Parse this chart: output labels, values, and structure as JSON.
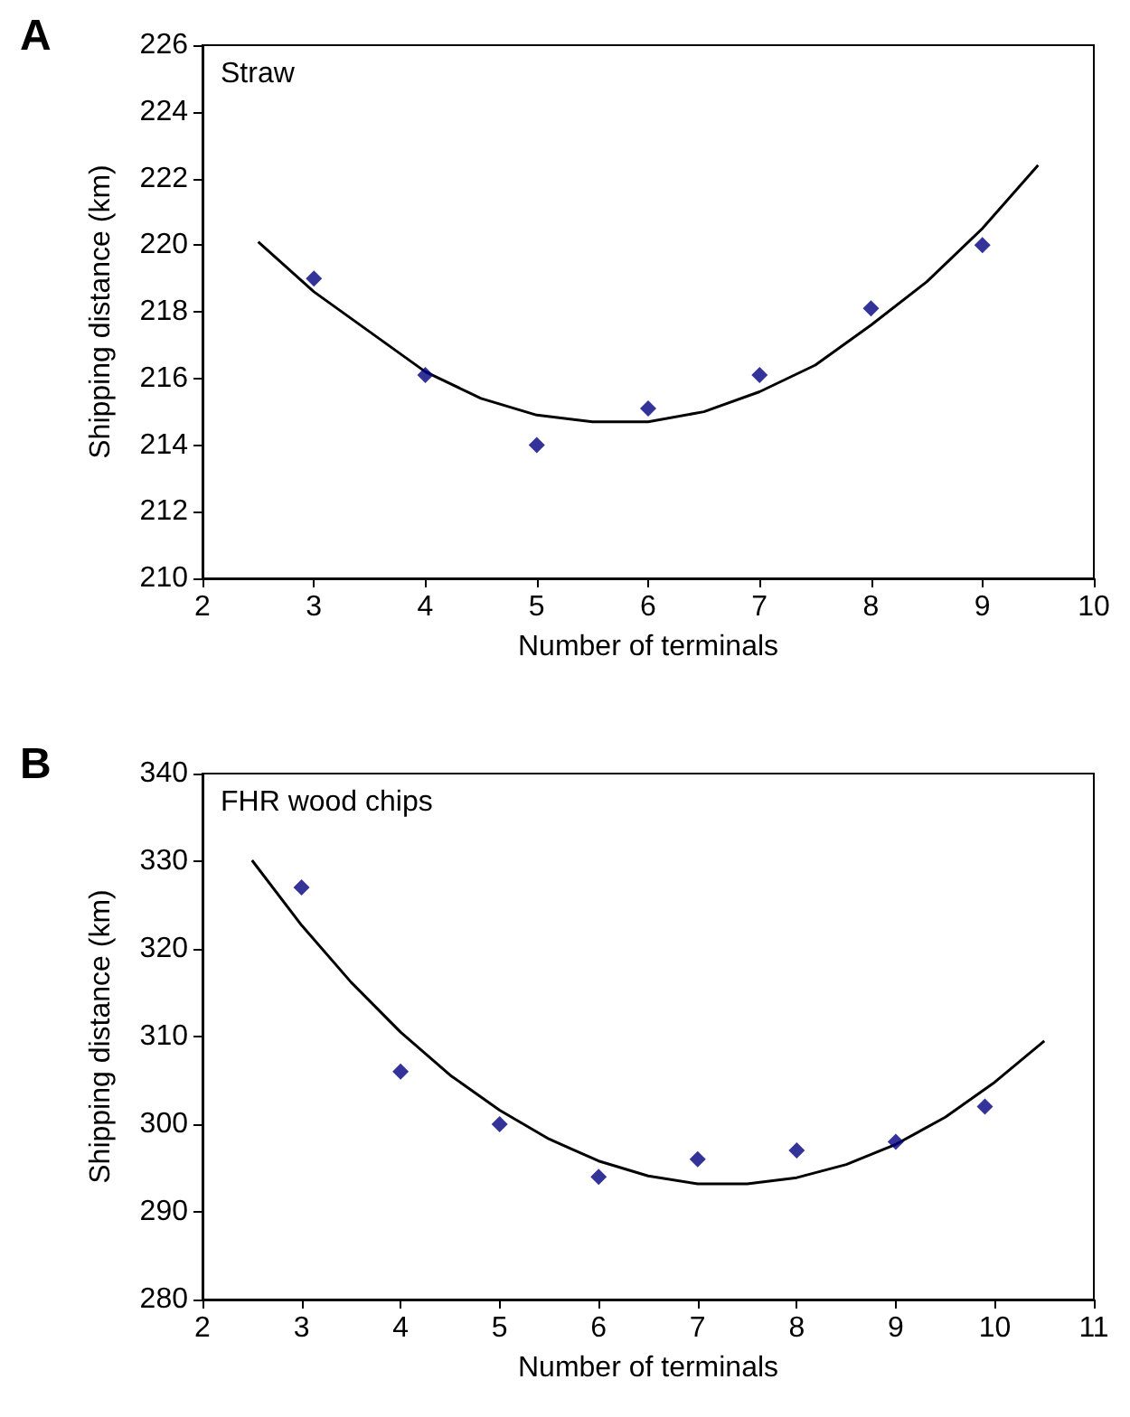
{
  "chart_data": [
    {
      "type": "scatter",
      "title": "A",
      "xlabel": "Number of terminals",
      "ylabel": "Shipping distance (km)",
      "annotations": [
        "Straw"
      ],
      "grid": false,
      "xlim": [
        2,
        10
      ],
      "xticks": [
        2,
        3,
        4,
        5,
        6,
        7,
        8,
        9,
        10
      ],
      "ylim": [
        210,
        226
      ],
      "yticks": [
        210,
        212,
        214,
        216,
        218,
        220,
        222,
        224,
        226
      ],
      "series": [
        {
          "marker": "diamond",
          "color": "#000080",
          "x": [
            3,
            4,
            5,
            6,
            7,
            8,
            9
          ],
          "values": [
            219,
            216.1,
            214,
            215.1,
            216.1,
            218.1,
            220
          ]
        },
        {
          "type": "line",
          "marker": "none",
          "color": "#000000",
          "x": [
            2.5,
            3,
            3.5,
            4,
            4.5,
            5,
            5.5,
            6,
            6.5,
            7,
            7.5,
            8,
            8.5,
            9,
            9.5
          ],
          "values": [
            220.1,
            218.6,
            217.4,
            216.2,
            215.4,
            214.9,
            214.7,
            214.7,
            215.0,
            215.6,
            216.4,
            217.6,
            218.9,
            220.5,
            222.4
          ]
        }
      ]
    },
    {
      "type": "scatter",
      "title": "B",
      "xlabel": "Number of terminals",
      "ylabel": "Shipping distance (km)",
      "annotations": [
        "FHR wood chips"
      ],
      "grid": false,
      "xlim": [
        2,
        11
      ],
      "xticks": [
        2,
        3,
        4,
        5,
        6,
        7,
        8,
        9,
        10,
        11
      ],
      "ylim": [
        280,
        340
      ],
      "yticks": [
        280,
        290,
        300,
        310,
        320,
        330,
        340
      ],
      "series": [
        {
          "marker": "diamond",
          "color": "#000080",
          "x": [
            3,
            4,
            5,
            6,
            7,
            8,
            9,
            9.9
          ],
          "values": [
            327,
            306,
            300,
            294,
            296,
            297,
            298,
            302
          ]
        },
        {
          "type": "line",
          "marker": "none",
          "color": "#000000",
          "x": [
            2.5,
            3,
            3.5,
            4,
            4.5,
            5,
            5.5,
            6,
            6.5,
            7,
            7.5,
            8,
            8.5,
            9,
            9.5,
            10,
            10.5
          ],
          "values": [
            330.1,
            322.7,
            316.2,
            310.5,
            305.6,
            301.6,
            298.3,
            295.8,
            294.1,
            293.2,
            293.2,
            293.9,
            295.4,
            297.7,
            300.8,
            304.8,
            309.5
          ]
        }
      ]
    }
  ]
}
